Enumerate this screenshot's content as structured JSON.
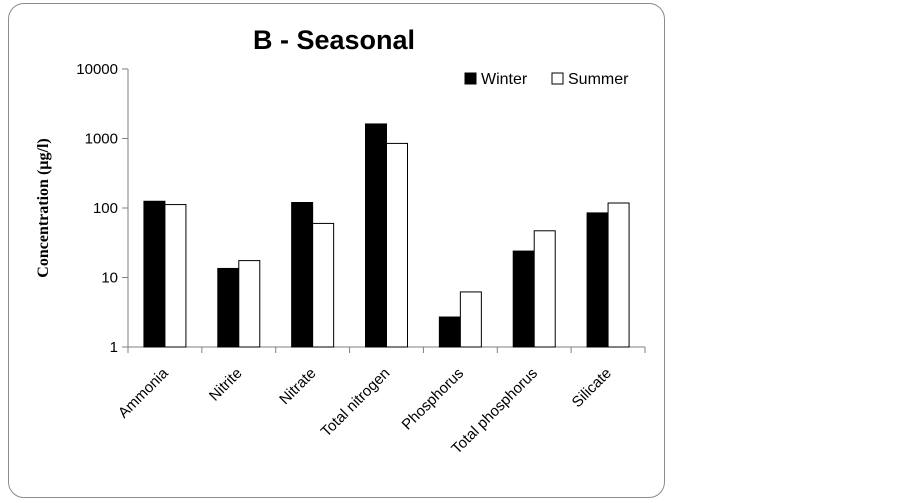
{
  "chart_data": {
    "type": "bar",
    "title": "B - Seasonal",
    "xlabel": "",
    "ylabel": "Concentration (µg/l)",
    "yscale": "log",
    "ylim": [
      1,
      10000
    ],
    "yticks": [
      1,
      10,
      100,
      1000,
      10000
    ],
    "ytick_labels": [
      "1",
      "10",
      "100",
      "1000",
      "10000"
    ],
    "grid": false,
    "legend_position": "top-right",
    "categories": [
      "Ammonia",
      "Nitrite",
      "Nitrate",
      "Total nitrogen",
      "Phosphorus",
      "Total phosphorus",
      "Silicate"
    ],
    "series": [
      {
        "name": "Winter",
        "color": "#000000",
        "values": [
          125,
          13.5,
          120,
          1620,
          2.7,
          24,
          85
        ]
      },
      {
        "name": "Summer",
        "color": "#ffffff",
        "values": [
          112,
          17.5,
          60,
          850,
          6.2,
          47,
          118
        ]
      }
    ]
  }
}
